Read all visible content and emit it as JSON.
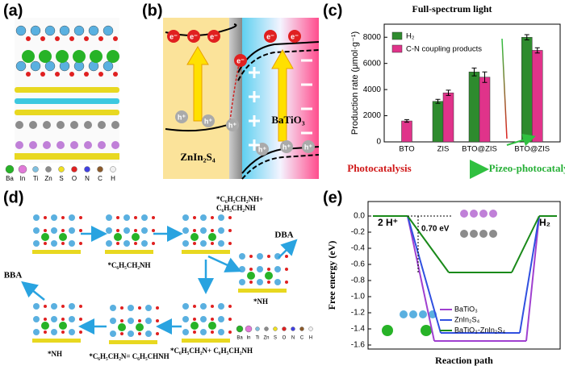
{
  "panels": [
    "(a)",
    "(b)",
    "(c)",
    "(d)",
    "(e)"
  ],
  "panel_a": {
    "legend": [
      "Ba",
      "In",
      "Ti",
      "Zn",
      "S",
      "O",
      "N",
      "C",
      "H"
    ]
  },
  "panel_b": {
    "left_material": "ZnIn₂S₄",
    "right_material": "BaTiO₃",
    "electron": "e⁻",
    "hole": "h⁺"
  },
  "panel_d": {
    "labels": [
      [
        "*C₆H₅CH₂NH"
      ],
      [
        "*C₆H₅CH₂NH+",
        "C₆H₅CH₂NH"
      ],
      [
        "DBA"
      ],
      [
        "*NH"
      ],
      [
        "BBA"
      ],
      [
        "*NH"
      ],
      [
        "*C₆H₅CH₂N= C₆H₅CHNH"
      ],
      [
        "*C₆H₅CH₂N+ C₆H₅CH₂NH"
      ]
    ],
    "legend": [
      "Ba",
      "In",
      "Ti",
      "Zn",
      "S",
      "O",
      "N",
      "C",
      "H"
    ]
  },
  "chart_data": [
    {
      "type": "bar",
      "title": "Full-spectrum light",
      "y_label": "Production rate (μmol·g⁻¹)",
      "categories": [
        "BTO",
        "ZIS",
        "BTO@ZIS",
        "BTO@ZIS"
      ],
      "series": [
        {
          "name": "H₂",
          "color": "#2e8b2e",
          "values": [
            null,
            3100,
            5350,
            8000
          ],
          "errors": [
            null,
            150,
            300,
            200
          ]
        },
        {
          "name": "C-N coupling products",
          "color": "#e0338a",
          "values": [
            1600,
            3750,
            4950,
            7000
          ],
          "errors": [
            100,
            200,
            400,
            200
          ]
        }
      ],
      "ylim": [
        0,
        9000
      ],
      "yticks": [
        0,
        2000,
        4000,
        6000,
        8000
      ],
      "legend": "upper left",
      "annotations": [
        "Photocatalysis",
        "Pizeo-photocatalysis"
      ]
    },
    {
      "type": "line",
      "x_label": "Reaction path",
      "y_label": "Free energy (eV)",
      "categories": [
        "2 H⁺",
        null,
        "H₂"
      ],
      "series": [
        {
          "name": "BaTiO₃",
          "color": "#a040d0",
          "values": [
            0,
            -1.55,
            0
          ]
        },
        {
          "name": "ZnIn₂S₄",
          "color": "#3050e0",
          "values": [
            0,
            -1.45,
            0
          ]
        },
        {
          "name": "BaTiO₃-ZnIn₂S₄",
          "color": "#1a8a1a",
          "values": [
            0,
            -0.7,
            0
          ]
        }
      ],
      "ylim": [
        -1.65,
        0.18
      ],
      "yticks": [
        {
          "value": 0,
          "label": "0.0"
        },
        -0.2,
        -0.4,
        -0.6,
        -0.8,
        {
          "value": -1,
          "label": "-1.0"
        },
        -1.2,
        -1.4,
        -1.6
      ],
      "annotations": [
        "0.70 eV"
      ]
    }
  ]
}
